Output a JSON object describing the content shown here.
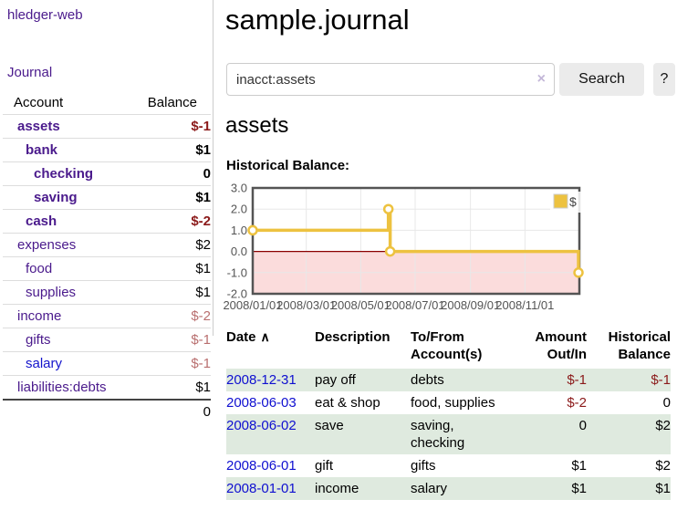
{
  "app": {
    "brand": "hledger-web",
    "nav_journal": "Journal"
  },
  "sidebar": {
    "account_header": "Account",
    "balance_header": "Balance",
    "accounts": [
      {
        "name": "assets",
        "level": 1,
        "bold": true,
        "balance": "$-1",
        "balance_tone": "neg-strong"
      },
      {
        "name": "bank",
        "level": 2,
        "bold": true,
        "balance": "$1",
        "balance_tone": "normal"
      },
      {
        "name": "checking",
        "level": 3,
        "bold": true,
        "balance": "0",
        "balance_tone": "normal"
      },
      {
        "name": "saving",
        "level": 3,
        "bold": true,
        "balance": "$1",
        "balance_tone": "normal"
      },
      {
        "name": "cash",
        "level": 2,
        "bold": true,
        "balance": "$-2",
        "balance_tone": "neg-strong"
      },
      {
        "name": "expenses",
        "level": 1,
        "bold": false,
        "balance": "$2",
        "balance_tone": "normal"
      },
      {
        "name": "food",
        "level": 2,
        "bold": false,
        "balance": "$1",
        "balance_tone": "normal"
      },
      {
        "name": "supplies",
        "level": 2,
        "bold": false,
        "balance": "$1",
        "balance_tone": "normal"
      },
      {
        "name": "income",
        "level": 1,
        "bold": false,
        "balance": "$-2",
        "balance_tone": "neg-soft"
      },
      {
        "name": "gifts",
        "level": 2,
        "bold": false,
        "balance": "$-1",
        "balance_tone": "neg-soft"
      },
      {
        "name": "salary",
        "level": 2,
        "bold": false,
        "balance": "$-1",
        "balance_tone": "neg-soft"
      },
      {
        "name": "liabilities:debts",
        "level": 1,
        "bold": false,
        "balance": "$1",
        "balance_tone": "normal"
      }
    ],
    "total": "0"
  },
  "header": {
    "title": "sample.journal"
  },
  "search": {
    "value": "inacct:assets",
    "clear_icon": "×",
    "button_label": "Search",
    "help_label": "?"
  },
  "account_page": {
    "heading": "assets",
    "chart_label": "Historical Balance:"
  },
  "chart_data": {
    "type": "line",
    "style": "steps",
    "title": "Historical Balance",
    "ylim": [
      -2,
      3
    ],
    "y_ticks": [
      "3.0",
      "2.0",
      "1.0",
      "0.0",
      "-1.0",
      "-2.0"
    ],
    "x_range": [
      "2008-01-01",
      "2009-01-01"
    ],
    "x_ticks": [
      "2008/01/01",
      "2008/03/01",
      "2008/05/01",
      "2008/07/01",
      "2008/09/01",
      "2008/11/01"
    ],
    "grid": true,
    "legend_position": "top-right",
    "series": [
      {
        "name": "$",
        "color": "#edc240",
        "points": [
          [
            "2008-01-01",
            1
          ],
          [
            "2008-06-01",
            2
          ],
          [
            "2008-06-03",
            0
          ],
          [
            "2008-12-31",
            -1
          ]
        ]
      }
    ],
    "colors": {
      "negative_region": "#fbdcdc",
      "zero_line": "#8b0000",
      "plot_border": "#545454",
      "gridline": "#e8e8e8",
      "tick_text": "#545454",
      "marker_fill": "#ffffff"
    }
  },
  "register": {
    "columns": [
      {
        "line1": "Date",
        "line2": "",
        "sort_indicator": "∧"
      },
      {
        "line1": "Description",
        "line2": ""
      },
      {
        "line1": "To/From",
        "line2": "Account(s)"
      },
      {
        "line1": "Amount",
        "line2": "Out/In"
      },
      {
        "line1": "Historical",
        "line2": "Balance"
      }
    ],
    "rows": [
      {
        "date": "2008-12-31",
        "description": "pay off",
        "accounts": "debts",
        "amount": "$-1",
        "amount_tone": "neg-strong",
        "balance": "$-1",
        "balance_tone": "neg-strong",
        "stripe": true
      },
      {
        "date": "2008-06-03",
        "description": "eat & shop",
        "accounts": "food, supplies",
        "amount": "$-2",
        "amount_tone": "neg-strong",
        "balance": "0",
        "balance_tone": "normal",
        "stripe": false
      },
      {
        "date": "2008-06-02",
        "description": "save",
        "accounts": "saving, checking",
        "amount": "0",
        "amount_tone": "normal",
        "balance": "$2",
        "balance_tone": "normal",
        "stripe": true
      },
      {
        "date": "2008-06-01",
        "description": "gift",
        "accounts": "gifts",
        "amount": "$1",
        "amount_tone": "normal",
        "balance": "$2",
        "balance_tone": "normal",
        "stripe": false
      },
      {
        "date": "2008-01-01",
        "description": "income",
        "accounts": "salary",
        "amount": "$1",
        "amount_tone": "normal",
        "balance": "$1",
        "balance_tone": "normal",
        "stripe": true
      }
    ]
  }
}
